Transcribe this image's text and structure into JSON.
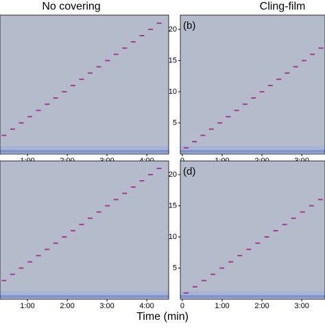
{
  "figure": {
    "x_label": "Time (min)"
  },
  "chart_data": [
    {
      "type": "spectrogram",
      "title": "No covering",
      "x": [
        21,
        34,
        47,
        60,
        73,
        86,
        99,
        112,
        125,
        138,
        151,
        164,
        177,
        190,
        203,
        216,
        229,
        242,
        255
      ],
      "values": [
        3,
        4,
        5,
        6,
        7,
        8,
        9,
        10,
        11,
        12,
        13,
        14,
        15,
        16,
        17,
        18,
        19,
        20,
        21
      ],
      "color": "#a8388f",
      "xlim": [
        18.6,
        273
      ],
      "ylim": [
        0,
        22.3
      ],
      "xticks": [
        {
          "value": 60,
          "label": "1:00"
        },
        {
          "value": 120,
          "label": "2:00"
        },
        {
          "value": 180,
          "label": "3:00"
        },
        {
          "value": 240,
          "label": "4:00"
        }
      ]
    },
    {
      "type": "spectrogram",
      "title": "Cling-film",
      "annotation": "(b)",
      "x": [
        2,
        14.7,
        27.4,
        40.1,
        52.8,
        65.5,
        78.2,
        90.9,
        103.6,
        116.3,
        129,
        141.7,
        154.4,
        167.1,
        179.8,
        192.5,
        205.2
      ],
      "values": [
        1,
        2,
        3,
        4,
        5,
        6,
        7,
        8,
        9,
        10,
        11,
        12,
        13,
        14,
        15,
        16,
        17
      ],
      "color": "#a8388f",
      "xlim": [
        -3,
        215
      ],
      "ylim": [
        0,
        22.3
      ],
      "xticks": [
        0,
        {
          "value": 60,
          "label": "1:00"
        },
        {
          "value": 120,
          "label": "2:00"
        },
        {
          "value": 180,
          "label": "3:00"
        }
      ],
      "yticks": [
        5,
        10,
        15,
        20
      ]
    },
    {
      "type": "spectrogram",
      "x": [
        21,
        34,
        47,
        60,
        73,
        86,
        99,
        112,
        125,
        138,
        151,
        164,
        177,
        190,
        203,
        216,
        229,
        242,
        255
      ],
      "values": [
        3,
        4,
        5,
        6,
        7,
        8,
        9,
        10,
        11,
        12,
        13,
        14,
        15,
        16,
        17,
        18,
        19,
        20,
        21
      ],
      "color": "#a8388f",
      "xlim": [
        18.6,
        273
      ],
      "ylim": [
        0,
        22.2
      ],
      "xticks": [
        {
          "value": 60,
          "label": "1:00"
        },
        {
          "value": 120,
          "label": "2:00"
        },
        {
          "value": 180,
          "label": "3:00"
        },
        {
          "value": 240,
          "label": "4:00"
        }
      ]
    },
    {
      "type": "spectrogram",
      "annotation": "(d)",
      "x": [
        2,
        15.5,
        29,
        42.5,
        56,
        69.5,
        83,
        96.5,
        110,
        123.5,
        137,
        150.5,
        164,
        177.5,
        191,
        204.5
      ],
      "values": [
        1,
        2,
        3,
        4,
        5,
        6,
        7,
        8,
        9,
        10,
        11,
        12,
        13,
        14,
        15,
        16
      ],
      "color": "#a8388f",
      "xlim": [
        -3,
        215
      ],
      "ylim": [
        0,
        22.2
      ],
      "xticks": [
        0,
        {
          "value": 60,
          "label": "1:00"
        },
        {
          "value": 120,
          "label": "2:00"
        },
        {
          "value": 180,
          "label": "3:00"
        }
      ],
      "yticks": [
        5,
        10,
        15,
        20
      ]
    }
  ]
}
